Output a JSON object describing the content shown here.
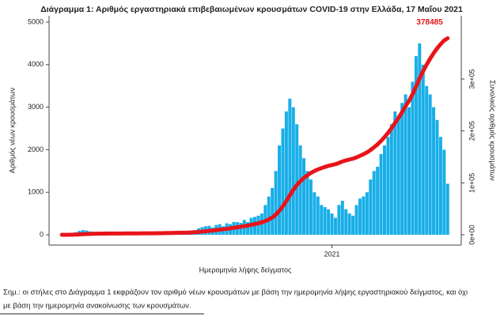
{
  "chart_data": {
    "type": "bar",
    "title": "Διάγραμμα 1: Αριθμός εργαστηριακά επιβεβαιωμένων κρουσμάτων COVID-19 στην Ελλάδα, 17 Μαΐου 2021",
    "x_label": "Ημερομηνία λήψης δείγματος",
    "y_label": "Αριθμός νέων κρουσμάτων",
    "y2_label": "Συνολικός αριθμός κρουσμάτων",
    "categories": [
      null,
      null,
      null,
      null,
      null,
      null,
      null,
      null,
      null,
      null,
      null,
      null,
      null,
      null,
      null,
      null,
      null,
      null,
      null,
      null,
      null,
      null,
      null,
      null,
      null,
      null,
      null,
      null,
      null,
      null,
      null,
      null,
      null,
      null,
      null,
      null,
      null,
      null,
      null,
      null,
      null,
      null,
      null,
      null,
      null,
      null,
      null,
      null,
      null,
      null,
      null,
      null,
      null,
      null,
      null,
      null,
      null,
      null,
      null,
      null,
      null,
      null,
      null,
      null,
      null,
      null,
      null,
      null,
      null,
      null,
      null,
      null,
      null,
      null,
      null,
      null,
      null,
      "2021",
      null,
      null,
      null,
      null,
      null,
      null,
      null,
      null,
      null,
      null,
      null,
      null,
      null,
      null,
      null,
      null,
      null,
      null,
      null,
      null,
      null,
      null,
      null,
      null,
      null,
      null,
      null,
      null,
      null,
      null,
      null,
      null,
      null
    ],
    "series": [
      {
        "type": "bar",
        "color": "#18aee8",
        "values": [
          2,
          5,
          10,
          30,
          60,
          90,
          110,
          100,
          80,
          70,
          60,
          40,
          20,
          15,
          10,
          10,
          8,
          10,
          5,
          15,
          10,
          5,
          10,
          15,
          20,
          10,
          20,
          25,
          30,
          40,
          30,
          40,
          35,
          30,
          50,
          40,
          60,
          90,
          110,
          150,
          180,
          200,
          210,
          170,
          230,
          250,
          200,
          270,
          250,
          300,
          300,
          280,
          350,
          300,
          400,
          420,
          450,
          500,
          700,
          900,
          1100,
          1500,
          2100,
          2500,
          2900,
          3200,
          3000,
          2600,
          2100,
          1800,
          1500,
          1300,
          1000,
          900,
          700,
          650,
          600,
          500,
          400,
          700,
          800,
          600,
          500,
          450,
          700,
          850,
          900,
          1000,
          1300,
          1500,
          1600,
          1900,
          2100,
          2300,
          2600,
          2900,
          2800,
          3100,
          3300,
          3000,
          3600,
          4200,
          4500,
          4000,
          3500,
          3300,
          3000,
          2700,
          2300,
          2000,
          1200
        ]
      },
      {
        "type": "line",
        "color": "#e8141a",
        "axis": "y2",
        "values": [
          7,
          25,
          60,
          165,
          375,
          690,
          1076,
          1427,
          1707,
          1952,
          2163,
          2303,
          2373,
          2426,
          2461,
          2496,
          2524,
          2559,
          2576,
          2629,
          2664,
          2681,
          2716,
          2769,
          2839,
          2874,
          2944,
          3032,
          3137,
          3277,
          3382,
          3523,
          3646,
          3751,
          3926,
          4066,
          4276,
          4592,
          4977,
          5503,
          6134,
          6835,
          7571,
          8167,
          8973,
          9849,
          10550,
          11497,
          12373,
          13425,
          14477,
          15458,
          16684,
          17736,
          19138,
          20610,
          22186,
          23939,
          26393,
          29547,
          33404,
          38661,
          46022,
          54785,
          64950,
          76166,
          86681,
          95794,
          103155,
          109464,
          114722,
          119279,
          122784,
          125938,
          128392,
          130670,
          132773,
          134526,
          135928,
          138381,
          141185,
          143288,
          145041,
          146618,
          149071,
          152050,
          155205,
          158710,
          163267,
          168525,
          174133,
          180793,
          188154,
          196216,
          205329,
          215494,
          225308,
          236174,
          247741,
          258256,
          270875,
          285596,
          301369,
          315389,
          327657,
          339224,
          349739,
          359203,
          367265,
          374276,
          378485
        ]
      }
    ],
    "ylim": [
      0,
      5000
    ],
    "yticks": [
      0,
      1000,
      2000,
      3000,
      4000,
      5000
    ],
    "y2lim": [
      0,
      409600
    ],
    "y2ticks": [
      {
        "value": 0,
        "label": "0e+00"
      },
      {
        "value": 100000,
        "label": "1e+05"
      },
      {
        "value": 200000,
        "label": "2e+05"
      },
      {
        "value": 300000,
        "label": "3e+05"
      }
    ]
  },
  "note": [
    "Σημ.: οι στήλες στο Διάγραμμα 1 εκφράζουν τον αριθμό νέων κρουσμάτων με βάση την ημερομηνία λήψης εργαστηριακού δείγματος, και όχι",
    "με βάση την ημερομηνία ανακοίνωσης των κρουσμάτων."
  ]
}
